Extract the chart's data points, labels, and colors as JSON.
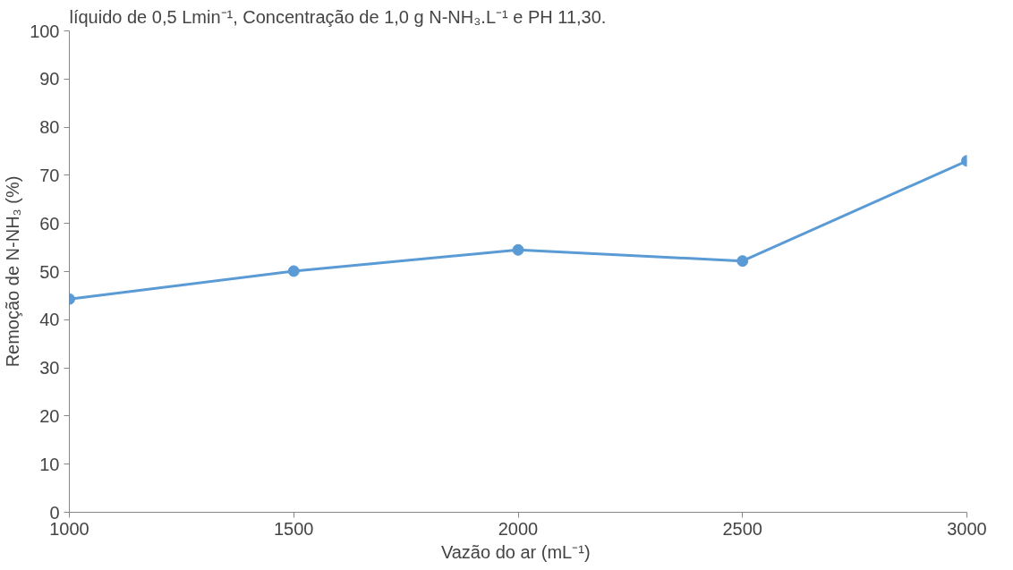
{
  "chart_data": {
    "type": "line",
    "title": "líquido de 0,5 Lmin⁻¹, Concentração de 1,0 g N-NH₃.L⁻¹ e PH 11,30.",
    "xlabel": "Vazão do ar  (mL⁻¹)",
    "ylabel": "Remoção de N-NH₃ (%)",
    "x": [
      1000,
      1500,
      2000,
      2500,
      3000
    ],
    "series": [
      {
        "color": "#5b9bd5",
        "values": [
          44.3,
          50.1,
          54.5,
          52.2,
          73.0
        ]
      }
    ],
    "xlim": [
      1000,
      3000
    ],
    "xticks": [
      1000,
      1500,
      2000,
      2500,
      3000
    ],
    "ylim": [
      0,
      100
    ],
    "yticks": [
      0,
      10,
      20,
      30,
      40,
      50,
      60,
      70,
      80,
      90,
      100
    ],
    "grid": false,
    "marker": "circle",
    "line_style": "solid"
  }
}
